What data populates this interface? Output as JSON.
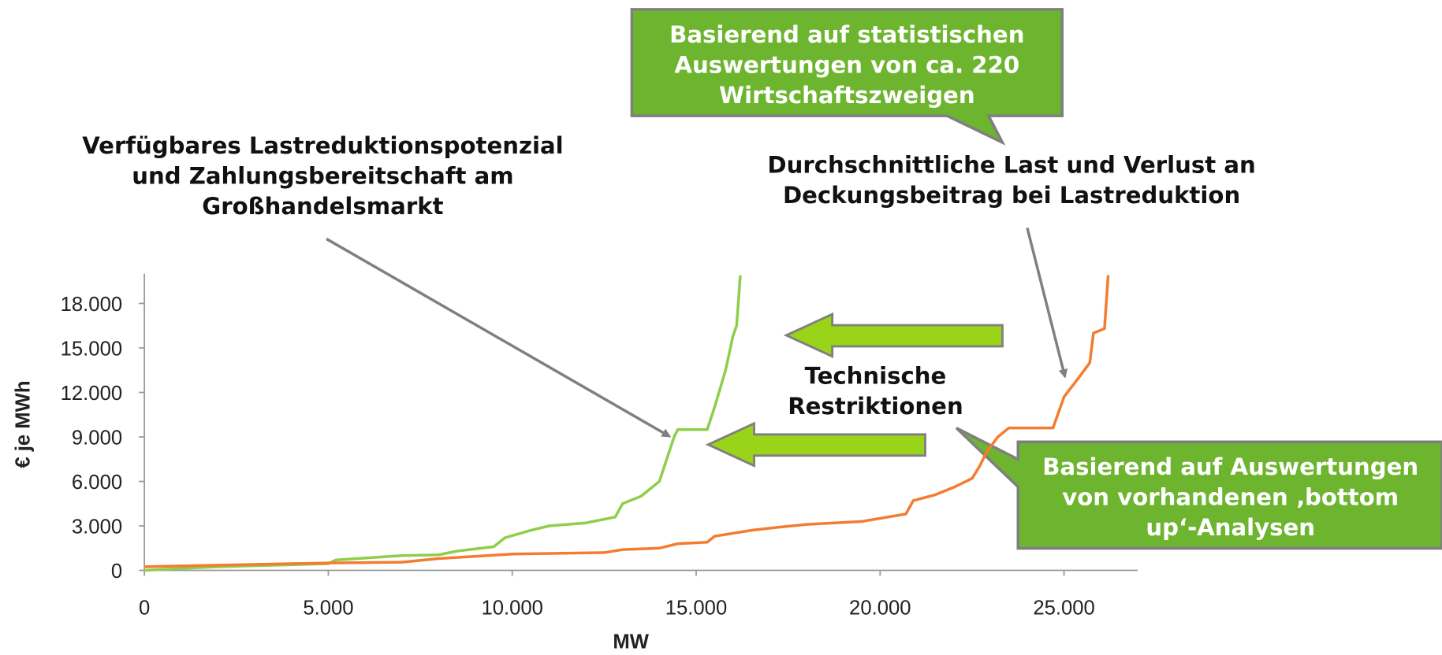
{
  "chart_data": {
    "type": "line",
    "xlabel": "MW",
    "ylabel": "€ je MWh",
    "xlim": [
      0,
      27000
    ],
    "ylim": [
      0,
      20000
    ],
    "xticks": [
      0,
      {
        "value": 5000,
        "label": "5.000"
      },
      {
        "value": 10000,
        "label": "10.000"
      },
      {
        "value": 15000,
        "label": "15.000"
      },
      {
        "value": 20000,
        "label": "20.000"
      },
      {
        "value": 25000,
        "label": "25.000"
      }
    ],
    "yticks": [
      0,
      {
        "value": 3000,
        "label": "3.000"
      },
      {
        "value": 6000,
        "label": "6.000"
      },
      {
        "value": 9000,
        "label": "9.000"
      },
      {
        "value": 12000,
        "label": "12.000"
      },
      {
        "value": 15000,
        "label": "15.000"
      },
      {
        "value": 18000,
        "label": "18.000"
      }
    ],
    "series": [
      {
        "color": "#8fce4a",
        "x": [
          0,
          2000,
          5000,
          5200,
          7000,
          8000,
          8500,
          9500,
          9800,
          10500,
          11000,
          12000,
          12800,
          13000,
          13500,
          14000,
          14200,
          14400,
          14500,
          15300,
          15500,
          15800,
          16000,
          16100,
          16200
        ],
        "values": [
          0,
          250,
          450,
          700,
          1000,
          1050,
          1300,
          1600,
          2200,
          2700,
          3000,
          3200,
          3600,
          4500,
          5000,
          6000,
          7500,
          9000,
          9500,
          9500,
          11000,
          13500,
          15800,
          16500,
          19900
        ]
      },
      {
        "color": "#f47c30",
        "x": [
          0,
          5000,
          7000,
          8000,
          10000,
          12500,
          13000,
          14000,
          14500,
          15300,
          15500,
          16500,
          17200,
          18000,
          19500,
          20700,
          20900,
          21500,
          22000,
          22500,
          22700,
          22900,
          23200,
          23500,
          24700,
          25000,
          25400,
          25700,
          25800,
          26100,
          26200
        ],
        "values": [
          250,
          500,
          550,
          800,
          1100,
          1200,
          1400,
          1500,
          1800,
          1900,
          2300,
          2700,
          2900,
          3100,
          3300,
          3800,
          4700,
          5100,
          5600,
          6200,
          7000,
          8000,
          9000,
          9600,
          9600,
          11700,
          13000,
          14000,
          16000,
          16300,
          19900
        ]
      }
    ],
    "annotations": [
      [
        "Basierend auf statistischen",
        "Auswertungen von ca. 220",
        "Wirtschaftszweigen"
      ],
      [
        "Verfügbares Lastreduktionspotenzial",
        "und Zahlungsbereitschaft am",
        "Großhandelsmarkt"
      ],
      [
        "Durchschnittliche Last und Verlust an",
        "Deckungsbeitrag bei Lastreduktion"
      ],
      [
        "Technische",
        "Restriktionen"
      ],
      [
        "Basierend auf Auswertungen",
        "von vorhandenen ‚bottom",
        "up‘-Analysen"
      ]
    ]
  }
}
